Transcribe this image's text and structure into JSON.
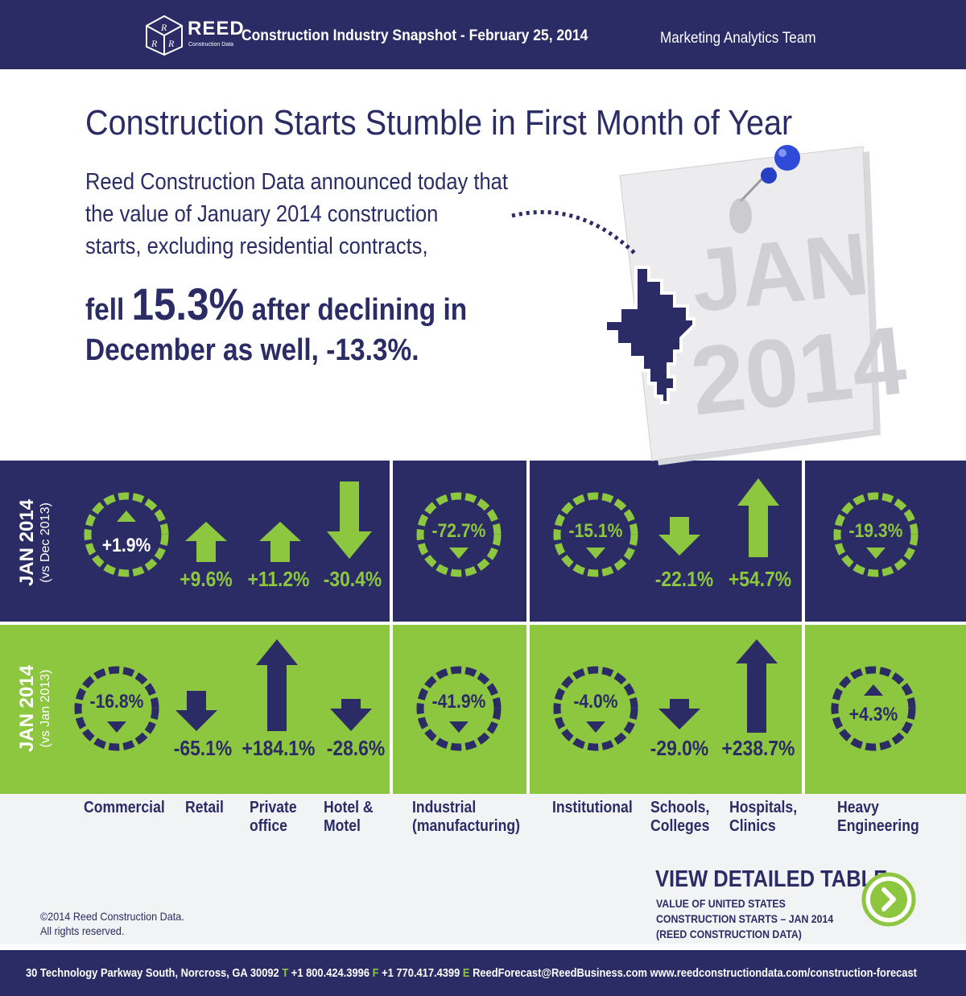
{
  "header": {
    "logo_word": "REED",
    "logo_sub": "Construction Data",
    "logo_letters": [
      "R",
      "R",
      "R"
    ],
    "title": "Construction Industry Snapshot - February 25, 2014",
    "team": "Marketing Analytics Team"
  },
  "headline": "Construction Starts Stumble in First Month of Year",
  "intro": {
    "line1": "Reed Construction Data announced today that",
    "line2": "the value of January 2014 construction",
    "line3": "starts, excluding residential contracts,",
    "bold1_pre": "fell ",
    "bold1_big": "15.3%",
    "bold1_post": " after declining in",
    "bold2": "December as well, -13.3%."
  },
  "note": {
    "line1": "JAN",
    "line2": "2014"
  },
  "rows": {
    "top": {
      "label": "JAN 2014",
      "sub": "(vs Dec 2013)"
    },
    "bottom": {
      "label": "JAN 2014",
      "sub": "(vs Jan 2013)"
    }
  },
  "top": {
    "commercial": "+1.9%",
    "retail": "+9.6%",
    "private_office": "+11.2%",
    "hotel": "-30.4%",
    "industrial": "-72.7%",
    "institutional": "-15.1%",
    "schools": "-22.1%",
    "hospitals": "+54.7%",
    "heavy": "-19.3%"
  },
  "bottom": {
    "commercial": "-16.8%",
    "retail": "-65.1%",
    "private_office": "+184.1%",
    "hotel": "-28.6%",
    "industrial": "-41.9%",
    "institutional": "-4.0%",
    "schools": "-29.0%",
    "hospitals": "+238.7%",
    "heavy": "+4.3%"
  },
  "categories": {
    "commercial": "Commercial",
    "retail": "Retail",
    "private_office_1": "Private",
    "private_office_2": "office",
    "hotel_1": "Hotel &",
    "hotel_2": "Motel",
    "industrial_1": "Industrial",
    "industrial_2": "(manufacturing)",
    "institutional": "Institutional",
    "schools_1": "Schools,",
    "schools_2": "Colleges",
    "hospitals_1": "Hospitals,",
    "hospitals_2": "Clinics",
    "heavy_1": "Heavy",
    "heavy_2": "Engineering"
  },
  "view": {
    "title": "VIEW DETAILED TABLE",
    "sub1": "VALUE OF UNITED STATES",
    "sub2": "CONSTRUCTION STARTS – JAN 2014",
    "sub3": "(REED CONSTRUCTION DATA)"
  },
  "copyright": {
    "line1": "©2014 Reed Construction Data.",
    "line2": "All rights reserved."
  },
  "footer": {
    "address": "30 Technology Parkway South, Norcross, GA 30092",
    "t_label": "T",
    "phone": "+1 800.424.3996",
    "f_label": "F",
    "fax": "+1 770.417.4399",
    "e_label": "E",
    "email": "ReedForecast@ReedBusiness.com",
    "url": "www.reedconstructiondata.com/construction-forecast"
  },
  "colors": {
    "navy": "#2b2b66",
    "green": "#8dc63f",
    "light_bg": "#f2f3f5",
    "note_text": "#d0d0d4"
  }
}
